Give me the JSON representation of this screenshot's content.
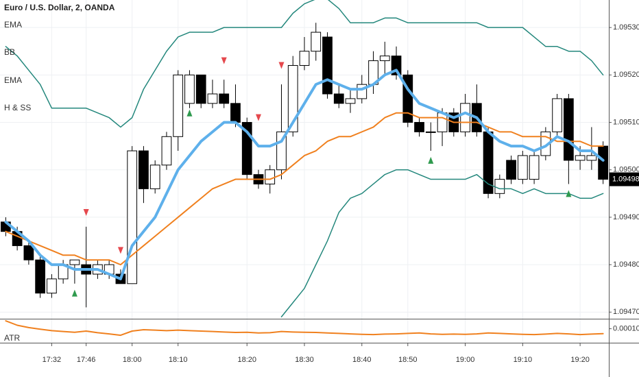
{
  "chart_data": {
    "type": "candlestick",
    "title": "Euro / U.S. Dollar, 2, OANDA",
    "categories": [
      null,
      null,
      null,
      null,
      "17:32",
      null,
      null,
      "17:46",
      null,
      null,
      null,
      "18:00",
      null,
      null,
      null,
      "18:10",
      null,
      null,
      null,
      null,
      null,
      "18:20",
      null,
      null,
      null,
      null,
      "18:30",
      null,
      null,
      null,
      null,
      "18:40",
      null,
      null,
      null,
      "18:50",
      null,
      null,
      null,
      null,
      "19:00",
      null,
      null,
      null,
      null,
      "19:10",
      null,
      null,
      null,
      null,
      "19:20",
      null,
      null
    ],
    "open": [
      1.09489,
      1.09487,
      1.09484,
      1.09481,
      1.09474,
      1.09477,
      1.0948,
      1.0948,
      1.09478,
      1.09478,
      1.09478,
      1.09476,
      1.09504,
      1.09496,
      1.09501,
      1.09507,
      1.09514,
      1.0952,
      1.09514,
      1.09516,
      1.09514,
      1.0951,
      1.09499,
      1.09497,
      1.095,
      1.09508,
      1.09522,
      1.09525,
      1.09528,
      1.09516,
      1.09514,
      1.09515,
      1.09518,
      1.09523,
      1.09524,
      1.0952,
      1.0951,
      1.09508,
      1.09508,
      1.09512,
      1.09508,
      1.09514,
      1.09508,
      1.09495,
      1.09502,
      1.09498,
      1.09498,
      1.09503,
      1.09508,
      1.09515,
      1.09502,
      1.09502,
      1.09505
    ],
    "high": [
      1.0949,
      1.09488,
      1.09485,
      1.09482,
      1.09478,
      1.09481,
      1.09481,
      1.09488,
      1.09481,
      1.09481,
      1.09479,
      1.09505,
      1.09505,
      1.09502,
      1.09508,
      1.09521,
      1.09521,
      1.0952,
      1.09519,
      1.09519,
      1.09518,
      1.09511,
      1.095,
      1.09501,
      1.09518,
      1.09524,
      1.09528,
      1.09531,
      1.09529,
      1.09518,
      1.09517,
      1.0952,
      1.09525,
      1.09527,
      1.09526,
      1.09521,
      1.09511,
      1.0951,
      1.09513,
      1.09513,
      1.09516,
      1.09518,
      1.09509,
      1.09499,
      1.09503,
      1.09504,
      1.09504,
      1.09509,
      1.09516,
      1.09516,
      1.09505,
      1.09509,
      1.09506
    ],
    "low": [
      1.09486,
      1.09483,
      1.0948,
      1.09473,
      1.09473,
      1.09476,
      1.09476,
      1.09471,
      1.09477,
      1.09477,
      1.09476,
      1.09476,
      1.09493,
      1.09495,
      1.095,
      1.09504,
      1.09513,
      1.09513,
      1.09513,
      1.09513,
      1.09509,
      1.09498,
      1.09496,
      1.09495,
      1.09498,
      1.09507,
      1.09521,
      1.09523,
      1.09515,
      1.09513,
      1.09512,
      1.09514,
      1.09516,
      1.0952,
      1.09519,
      1.09509,
      1.09507,
      1.09504,
      1.09505,
      1.09507,
      1.09507,
      1.09507,
      1.09494,
      1.09494,
      1.09497,
      1.09497,
      1.09497,
      1.09502,
      1.09507,
      1.09497,
      1.095,
      1.095,
      1.09497
    ],
    "close": [
      1.09487,
      1.09484,
      1.09481,
      1.09474,
      1.09477,
      1.0948,
      1.09481,
      1.09478,
      1.0948,
      1.0948,
      1.09476,
      1.09504,
      1.09496,
      1.09501,
      1.09507,
      1.0952,
      1.0952,
      1.09514,
      1.09516,
      1.09514,
      1.0951,
      1.09499,
      1.09497,
      1.095,
      1.09508,
      1.09522,
      1.09525,
      1.09529,
      1.09516,
      1.09514,
      1.09515,
      1.09518,
      1.09523,
      1.09524,
      1.0952,
      1.0951,
      1.09508,
      1.09508,
      1.09512,
      1.09508,
      1.09514,
      1.09508,
      1.09495,
      1.09498,
      1.09498,
      1.09503,
      1.09503,
      1.09508,
      1.09515,
      1.09502,
      1.09503,
      1.09503,
      1.09498
    ],
    "up_color": "#ffffff",
    "down_color": "#000000",
    "ylim": [
      1.094686,
      1.095358
    ],
    "yticks": [
      {
        "value": 1.0947,
        "label": "1.09470"
      },
      {
        "value": 1.0948,
        "label": "1.09480"
      },
      {
        "value": 1.0949,
        "label": "1.09490"
      },
      {
        "value": 1.095,
        "label": "1.09500"
      },
      {
        "value": 1.0951,
        "label": "1.09510"
      },
      {
        "value": 1.0952,
        "label": "1.09520"
      },
      {
        "value": 1.0953,
        "label": "1.09530"
      }
    ],
    "grid": true,
    "indicators": [
      {
        "name": "EMA",
        "color": "#5eb0eb",
        "values": [
          1.09489,
          1.09487,
          1.09485,
          1.09482,
          1.0948,
          1.0948,
          1.09479,
          1.09479,
          1.09479,
          1.09478,
          1.09477,
          1.09484,
          1.09487,
          1.0949,
          1.09495,
          1.095,
          1.09503,
          1.09506,
          1.09508,
          1.0951,
          1.0951,
          1.09508,
          1.09505,
          1.09505,
          1.09506,
          1.0951,
          1.09514,
          1.09518,
          1.09519,
          1.09518,
          1.09517,
          1.09517,
          1.09518,
          1.0952,
          1.09521,
          1.09517,
          1.09514,
          1.09513,
          1.09512,
          1.09511,
          1.09512,
          1.09511,
          1.09508,
          1.09506,
          1.09505,
          1.09505,
          1.09504,
          1.09505,
          1.09507,
          1.09506,
          1.09504,
          1.09504,
          1.09502
        ]
      },
      {
        "name": "BB",
        "color": "#23877c",
        "upper": [
          1.09526,
          1.09524,
          1.09521,
          1.09518,
          1.09513,
          1.09513,
          1.09513,
          1.09513,
          1.09512,
          1.09511,
          1.09509,
          1.09511,
          1.09517,
          1.09521,
          1.09525,
          1.09528,
          1.09529,
          1.09529,
          1.09529,
          1.0953,
          1.0953,
          1.0953,
          1.0953,
          1.0953,
          1.0953,
          1.09533,
          1.09535,
          1.09536,
          1.09536,
          1.09534,
          1.09531,
          1.09531,
          1.09531,
          1.09532,
          1.09532,
          1.09531,
          1.09531,
          1.09531,
          1.09531,
          1.09531,
          1.09531,
          1.09531,
          1.0953,
          1.0953,
          1.0953,
          1.0953,
          1.09528,
          1.09526,
          1.09526,
          1.09525,
          1.09525,
          1.09523,
          1.0952
        ],
        "lower": [
          null,
          null,
          null,
          null,
          null,
          null,
          null,
          null,
          null,
          null,
          null,
          null,
          null,
          null,
          null,
          null,
          null,
          null,
          null,
          null,
          null,
          null,
          null,
          null,
          1.09469,
          1.09472,
          1.09475,
          1.0948,
          1.09485,
          1.09491,
          1.09494,
          1.09495,
          1.09497,
          1.09499,
          1.095,
          1.095,
          1.09499,
          1.09498,
          1.09498,
          1.09498,
          1.09498,
          1.09499,
          1.09497,
          1.09496,
          1.09496,
          1.09495,
          1.09496,
          1.09495,
          1.09495,
          1.09495,
          1.09494,
          1.09494,
          1.09495
        ]
      },
      {
        "name": "EMA",
        "color": "#f0801e",
        "values": [
          1.09487,
          1.09486,
          1.09485,
          1.09484,
          1.09483,
          1.09482,
          1.09482,
          1.09481,
          1.09481,
          1.09481,
          1.0948,
          1.09482,
          1.09484,
          1.09486,
          1.09488,
          1.0949,
          1.09492,
          1.09494,
          1.09496,
          1.09497,
          1.09498,
          1.09498,
          1.09498,
          1.09498,
          1.09499,
          1.09501,
          1.09503,
          1.09504,
          1.09506,
          1.09507,
          1.09507,
          1.09508,
          1.09509,
          1.09511,
          1.09512,
          1.09512,
          1.09511,
          1.09511,
          1.09511,
          1.0951,
          1.0951,
          1.0951,
          1.09509,
          1.09508,
          1.09508,
          1.09507,
          1.09507,
          1.09507,
          1.09506,
          1.09506,
          1.09506,
          1.09505,
          1.09505
        ]
      },
      {
        "name": "H & SS",
        "sell_color": "#e5484d",
        "buy_color": "#2f9a4e",
        "sell": [
          null,
          null,
          null,
          null,
          null,
          null,
          null,
          1.09491,
          null,
          null,
          1.09483,
          null,
          null,
          null,
          null,
          null,
          null,
          null,
          null,
          1.09523,
          null,
          null,
          1.09511,
          null,
          1.09522,
          null,
          null,
          null,
          null,
          null,
          null,
          null,
          null,
          null,
          null,
          null,
          null,
          null,
          null,
          null,
          null,
          null,
          null,
          null,
          null,
          null,
          null,
          null,
          null,
          null,
          null,
          null,
          null
        ],
        "buy": [
          null,
          null,
          null,
          null,
          null,
          null,
          1.09474,
          null,
          null,
          null,
          null,
          null,
          null,
          null,
          null,
          null,
          1.09512,
          null,
          null,
          null,
          null,
          null,
          null,
          null,
          null,
          null,
          null,
          null,
          null,
          null,
          null,
          null,
          null,
          null,
          null,
          null,
          null,
          1.09502,
          null,
          null,
          null,
          null,
          null,
          null,
          null,
          null,
          null,
          null,
          null,
          1.09495,
          null,
          null,
          null
        ]
      }
    ],
    "atr": {
      "name": "ATR",
      "color": "#f0801e",
      "values": [
        0.000134,
        0.000115,
        0.000105,
        9.8e-05,
        9.2e-05,
        8.8e-05,
        8.5e-05,
        9e-05,
        8.3e-05,
        7.8e-05,
        7.2e-05,
        9e-05,
        9.6e-05,
        9.4e-05,
        9.2e-05,
        9.4e-05,
        9.2e-05,
        9e-05,
        8.8e-05,
        8.6e-05,
        8.4e-05,
        8.5e-05,
        8.2e-05,
        8.3e-05,
        8.8e-05,
        8.6e-05,
        8.5e-05,
        8.4e-05,
        8.2e-05,
        8e-05,
        7.8e-05,
        7.6e-05,
        7.5e-05,
        7.7e-05,
        7.8e-05,
        8e-05,
        8.2e-05,
        7.8e-05,
        7.6e-05,
        7.7e-05,
        7.6e-05,
        7.8e-05,
        8.2e-05,
        8e-05,
        7.8e-05,
        7.6e-05,
        7.5e-05,
        7.7e-05,
        8e-05,
        7.8e-05,
        7.5e-05,
        7.7e-05,
        7.9e-05
      ],
      "ylim": [
        4e-05,
        0.00014
      ],
      "yticks": [
        {
          "value": 0.0001,
          "label": "0.00010"
        }
      ]
    }
  }
}
